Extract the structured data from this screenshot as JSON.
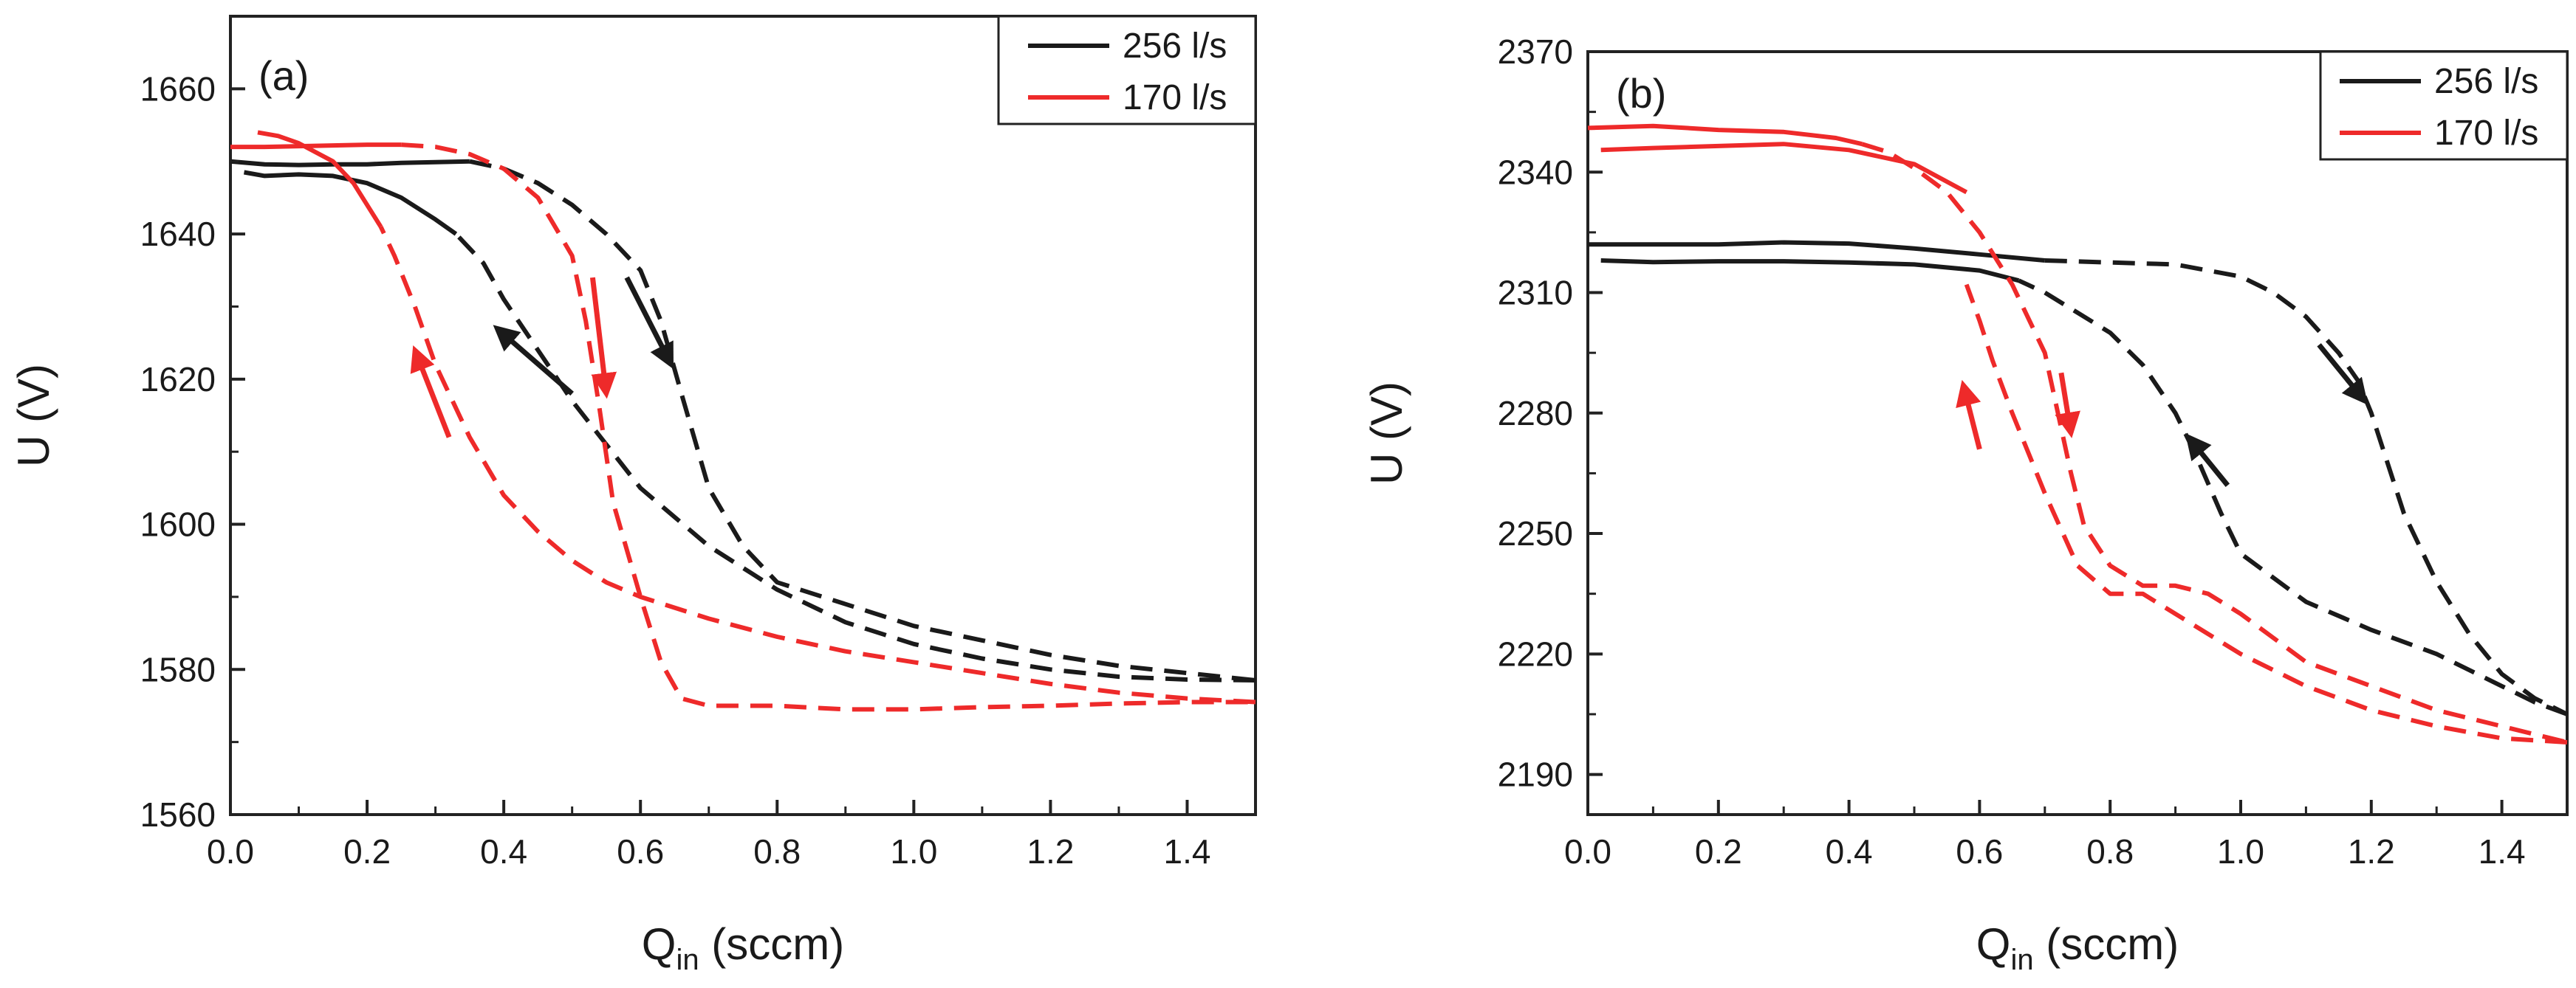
{
  "chart_data": [
    {
      "type": "line",
      "panel_label": "(a)",
      "xlabel": "Q",
      "xlabel_sub": "in",
      "xlabel_unit": " (sccm)",
      "ylabel": "U (V)",
      "xlim": [
        0.0,
        1.5
      ],
      "ylim": [
        1560,
        1670
      ],
      "xticks": [
        "0.0",
        "0.2",
        "0.4",
        "0.6",
        "0.8",
        "1.0",
        "1.2",
        "1.4"
      ],
      "yticks": [
        "1560",
        "1580",
        "1600",
        "1620",
        "1640",
        "1660"
      ],
      "legend": [
        {
          "name": "256 l/s",
          "color": "#1a1a1a"
        },
        {
          "name": "170 l/s",
          "color": "#ee2a2a"
        }
      ],
      "legend_position": "top-right",
      "series": [
        {
          "name": "256 l/s",
          "color": "#1a1a1a",
          "dashed": false,
          "segment": "up-solid",
          "x": [
            0.0,
            0.05,
            0.1,
            0.15,
            0.2,
            0.25,
            0.3,
            0.35
          ],
          "y": [
            1650,
            1649.6,
            1649.5,
            1649.6,
            1649.6,
            1649.8,
            1649.9,
            1650
          ]
        },
        {
          "name": "256 l/s",
          "color": "#1a1a1a",
          "dashed": true,
          "segment": "up-dashed",
          "x": [
            0.35,
            0.4,
            0.45,
            0.5,
            0.55,
            0.6,
            0.63,
            0.66,
            0.7,
            0.75,
            0.8,
            0.9,
            1.0,
            1.1,
            1.2,
            1.3,
            1.4,
            1.5
          ],
          "y": [
            1650,
            1649,
            1647,
            1644,
            1640,
            1635,
            1628,
            1618,
            1605,
            1597,
            1592,
            1589,
            1586,
            1584,
            1582,
            1580.5,
            1579.5,
            1578.5
          ]
        },
        {
          "name": "256 l/s",
          "color": "#1a1a1a",
          "dashed": true,
          "segment": "down-dashed",
          "x": [
            1.5,
            1.4,
            1.3,
            1.2,
            1.1,
            1.0,
            0.9,
            0.8,
            0.7,
            0.6,
            0.55,
            0.5,
            0.45,
            0.4,
            0.37,
            0.33
          ],
          "y": [
            1578.5,
            1578.6,
            1579,
            1580,
            1581.5,
            1583.5,
            1586.5,
            1591,
            1597,
            1605,
            1611,
            1617,
            1624,
            1631,
            1636,
            1640
          ]
        },
        {
          "name": "256 l/s",
          "color": "#1a1a1a",
          "dashed": false,
          "segment": "down-solid",
          "x": [
            0.33,
            0.3,
            0.25,
            0.2,
            0.15,
            0.1,
            0.05,
            0.02
          ],
          "y": [
            1640,
            1642,
            1645,
            1647,
            1648,
            1648.2,
            1648,
            1648.5
          ]
        },
        {
          "name": "170 l/s",
          "color": "#ee2a2a",
          "dashed": false,
          "segment": "up-solid",
          "x": [
            0.0,
            0.05,
            0.1,
            0.15,
            0.2,
            0.25
          ],
          "y": [
            1652,
            1652,
            1652.1,
            1652.2,
            1652.3,
            1652.3
          ]
        },
        {
          "name": "170 l/s",
          "color": "#ee2a2a",
          "dashed": true,
          "segment": "up-dashed",
          "x": [
            0.25,
            0.3,
            0.35,
            0.4,
            0.45,
            0.5,
            0.52,
            0.54,
            0.56,
            0.6,
            0.63,
            0.66,
            0.7,
            0.8,
            0.9,
            1.0,
            1.1,
            1.2,
            1.3,
            1.4,
            1.5
          ],
          "y": [
            1652.3,
            1652,
            1651,
            1649,
            1645,
            1637,
            1628,
            1616,
            1603,
            1590,
            1581,
            1576,
            1575,
            1575,
            1574.5,
            1574.5,
            1574.8,
            1575,
            1575.3,
            1575.5,
            1575.5
          ]
        },
        {
          "name": "170 l/s",
          "color": "#ee2a2a",
          "dashed": true,
          "segment": "down-dashed",
          "x": [
            1.5,
            1.4,
            1.3,
            1.2,
            1.1,
            1.0,
            0.9,
            0.8,
            0.7,
            0.6,
            0.55,
            0.5,
            0.45,
            0.4,
            0.35,
            0.3,
            0.27,
            0.24,
            0.22
          ],
          "y": [
            1575.5,
            1576,
            1576.8,
            1578,
            1579.5,
            1581,
            1582.5,
            1584.5,
            1587,
            1590,
            1592,
            1595,
            1599,
            1604,
            1612,
            1622,
            1630,
            1637,
            1641
          ]
        },
        {
          "name": "170 l/s",
          "color": "#ee2a2a",
          "dashed": false,
          "segment": "down-solid",
          "x": [
            0.22,
            0.18,
            0.15,
            0.1,
            0.07,
            0.04
          ],
          "y": [
            1641,
            1647,
            1650,
            1652.5,
            1653.5,
            1654
          ]
        }
      ],
      "arrows": [
        {
          "color": "#1a1a1a",
          "x1": 0.58,
          "y1": 1634,
          "x2": 0.645,
          "y2": 1622
        },
        {
          "color": "#1a1a1a",
          "x1": 0.5,
          "y1": 1618,
          "x2": 0.39,
          "y2": 1627
        },
        {
          "color": "#ee2a2a",
          "x1": 0.53,
          "y1": 1634,
          "x2": 0.55,
          "y2": 1618
        },
        {
          "color": "#ee2a2a",
          "x1": 0.32,
          "y1": 1612,
          "x2": 0.27,
          "y2": 1624
        }
      ]
    },
    {
      "type": "line",
      "panel_label": "(b)",
      "xlabel": "Q",
      "xlabel_sub": "in",
      "xlabel_unit": " (sccm)",
      "ylabel": "U (V)",
      "xlim": [
        0.0,
        1.5
      ],
      "ylim": [
        2180,
        2370
      ],
      "xticks": [
        "0.0",
        "0.2",
        "0.4",
        "0.6",
        "0.8",
        "1.0",
        "1.2",
        "1.4"
      ],
      "yticks": [
        "2190",
        "2220",
        "2250",
        "2280",
        "2310",
        "2340",
        "2370"
      ],
      "legend": [
        {
          "name": "256 l/s",
          "color": "#1a1a1a"
        },
        {
          "name": "170 l/s",
          "color": "#ee2a2a"
        }
      ],
      "legend_position": "top-right",
      "series": [
        {
          "name": "256 l/s",
          "color": "#1a1a1a",
          "dashed": false,
          "segment": "up-solid",
          "x": [
            0.0,
            0.1,
            0.2,
            0.3,
            0.4,
            0.5,
            0.6,
            0.7
          ],
          "y": [
            2322,
            2322,
            2322,
            2322.5,
            2322.2,
            2321,
            2319.5,
            2318
          ]
        },
        {
          "name": "256 l/s",
          "color": "#1a1a1a",
          "dashed": true,
          "segment": "up-dashed",
          "x": [
            0.7,
            0.8,
            0.9,
            1.0,
            1.05,
            1.1,
            1.15,
            1.18,
            1.2,
            1.22,
            1.25,
            1.3,
            1.35,
            1.4,
            1.45,
            1.5
          ],
          "y": [
            2318,
            2317.5,
            2317,
            2314,
            2310,
            2304,
            2295,
            2288,
            2280,
            2270,
            2255,
            2238,
            2225,
            2215,
            2209,
            2205
          ]
        },
        {
          "name": "256 l/s",
          "color": "#1a1a1a",
          "dashed": true,
          "segment": "down-dashed",
          "x": [
            1.5,
            1.45,
            1.4,
            1.35,
            1.3,
            1.2,
            1.1,
            1.0,
            0.97,
            0.93,
            0.9,
            0.85,
            0.8,
            0.75,
            0.7,
            0.66
          ],
          "y": [
            2205,
            2208,
            2212,
            2216,
            2220,
            2226,
            2233,
            2245,
            2255,
            2270,
            2280,
            2292,
            2300,
            2305,
            2310,
            2313
          ]
        },
        {
          "name": "256 l/s",
          "color": "#1a1a1a",
          "dashed": false,
          "segment": "down-solid",
          "x": [
            0.66,
            0.6,
            0.5,
            0.4,
            0.3,
            0.2,
            0.1,
            0.02
          ],
          "y": [
            2313,
            2315.5,
            2317,
            2317.5,
            2317.8,
            2317.8,
            2317.6,
            2318
          ]
        },
        {
          "name": "170 l/s",
          "color": "#ee2a2a",
          "dashed": false,
          "segment": "up-solid",
          "x": [
            0.0,
            0.1,
            0.2,
            0.3,
            0.38,
            0.42
          ],
          "y": [
            2351,
            2351.5,
            2350.5,
            2350,
            2348.5,
            2347
          ]
        },
        {
          "name": "170 l/s",
          "color": "#ee2a2a",
          "dashed": true,
          "segment": "up-dashed",
          "x": [
            0.42,
            0.46,
            0.5,
            0.55,
            0.6,
            0.65,
            0.7,
            0.72,
            0.74,
            0.76,
            0.8,
            0.85,
            0.9,
            0.95,
            1.0,
            1.05,
            1.1,
            1.2,
            1.3,
            1.4,
            1.5
          ],
          "y": [
            2347,
            2345,
            2341,
            2335,
            2325,
            2312,
            2295,
            2280,
            2265,
            2252,
            2242,
            2237,
            2237,
            2235,
            2230,
            2224,
            2218,
            2212,
            2206,
            2202,
            2198
          ]
        },
        {
          "name": "170 l/s",
          "color": "#ee2a2a",
          "dashed": true,
          "segment": "down-dashed",
          "x": [
            1.5,
            1.4,
            1.3,
            1.2,
            1.1,
            1.0,
            0.9,
            0.85,
            0.8,
            0.75,
            0.7,
            0.65,
            0.62,
            0.6,
            0.58
          ],
          "y": [
            2198,
            2199,
            2202,
            2206,
            2212,
            2220,
            2230,
            2235,
            2235,
            2242,
            2260,
            2280,
            2293,
            2303,
            2312
          ]
        },
        {
          "name": "170 l/s",
          "color": "#ee2a2a",
          "dashed": false,
          "segment": "down-solid",
          "x": [
            0.58,
            0.5,
            0.4,
            0.3,
            0.2,
            0.1,
            0.02
          ],
          "y": [
            2335,
            2342,
            2345.5,
            2347,
            2346.5,
            2346,
            2345.5
          ]
        }
      ],
      "arrows": [
        {
          "color": "#1a1a1a",
          "x1": 1.12,
          "y1": 2297,
          "x2": 1.19,
          "y2": 2283
        },
        {
          "color": "#1a1a1a",
          "x1": 0.98,
          "y1": 2262,
          "x2": 0.92,
          "y2": 2274
        },
        {
          "color": "#ee2a2a",
          "x1": 0.725,
          "y1": 2290,
          "x2": 0.74,
          "y2": 2275
        },
        {
          "color": "#ee2a2a",
          "x1": 0.6,
          "y1": 2271,
          "x2": 0.575,
          "y2": 2287
        }
      ]
    }
  ]
}
